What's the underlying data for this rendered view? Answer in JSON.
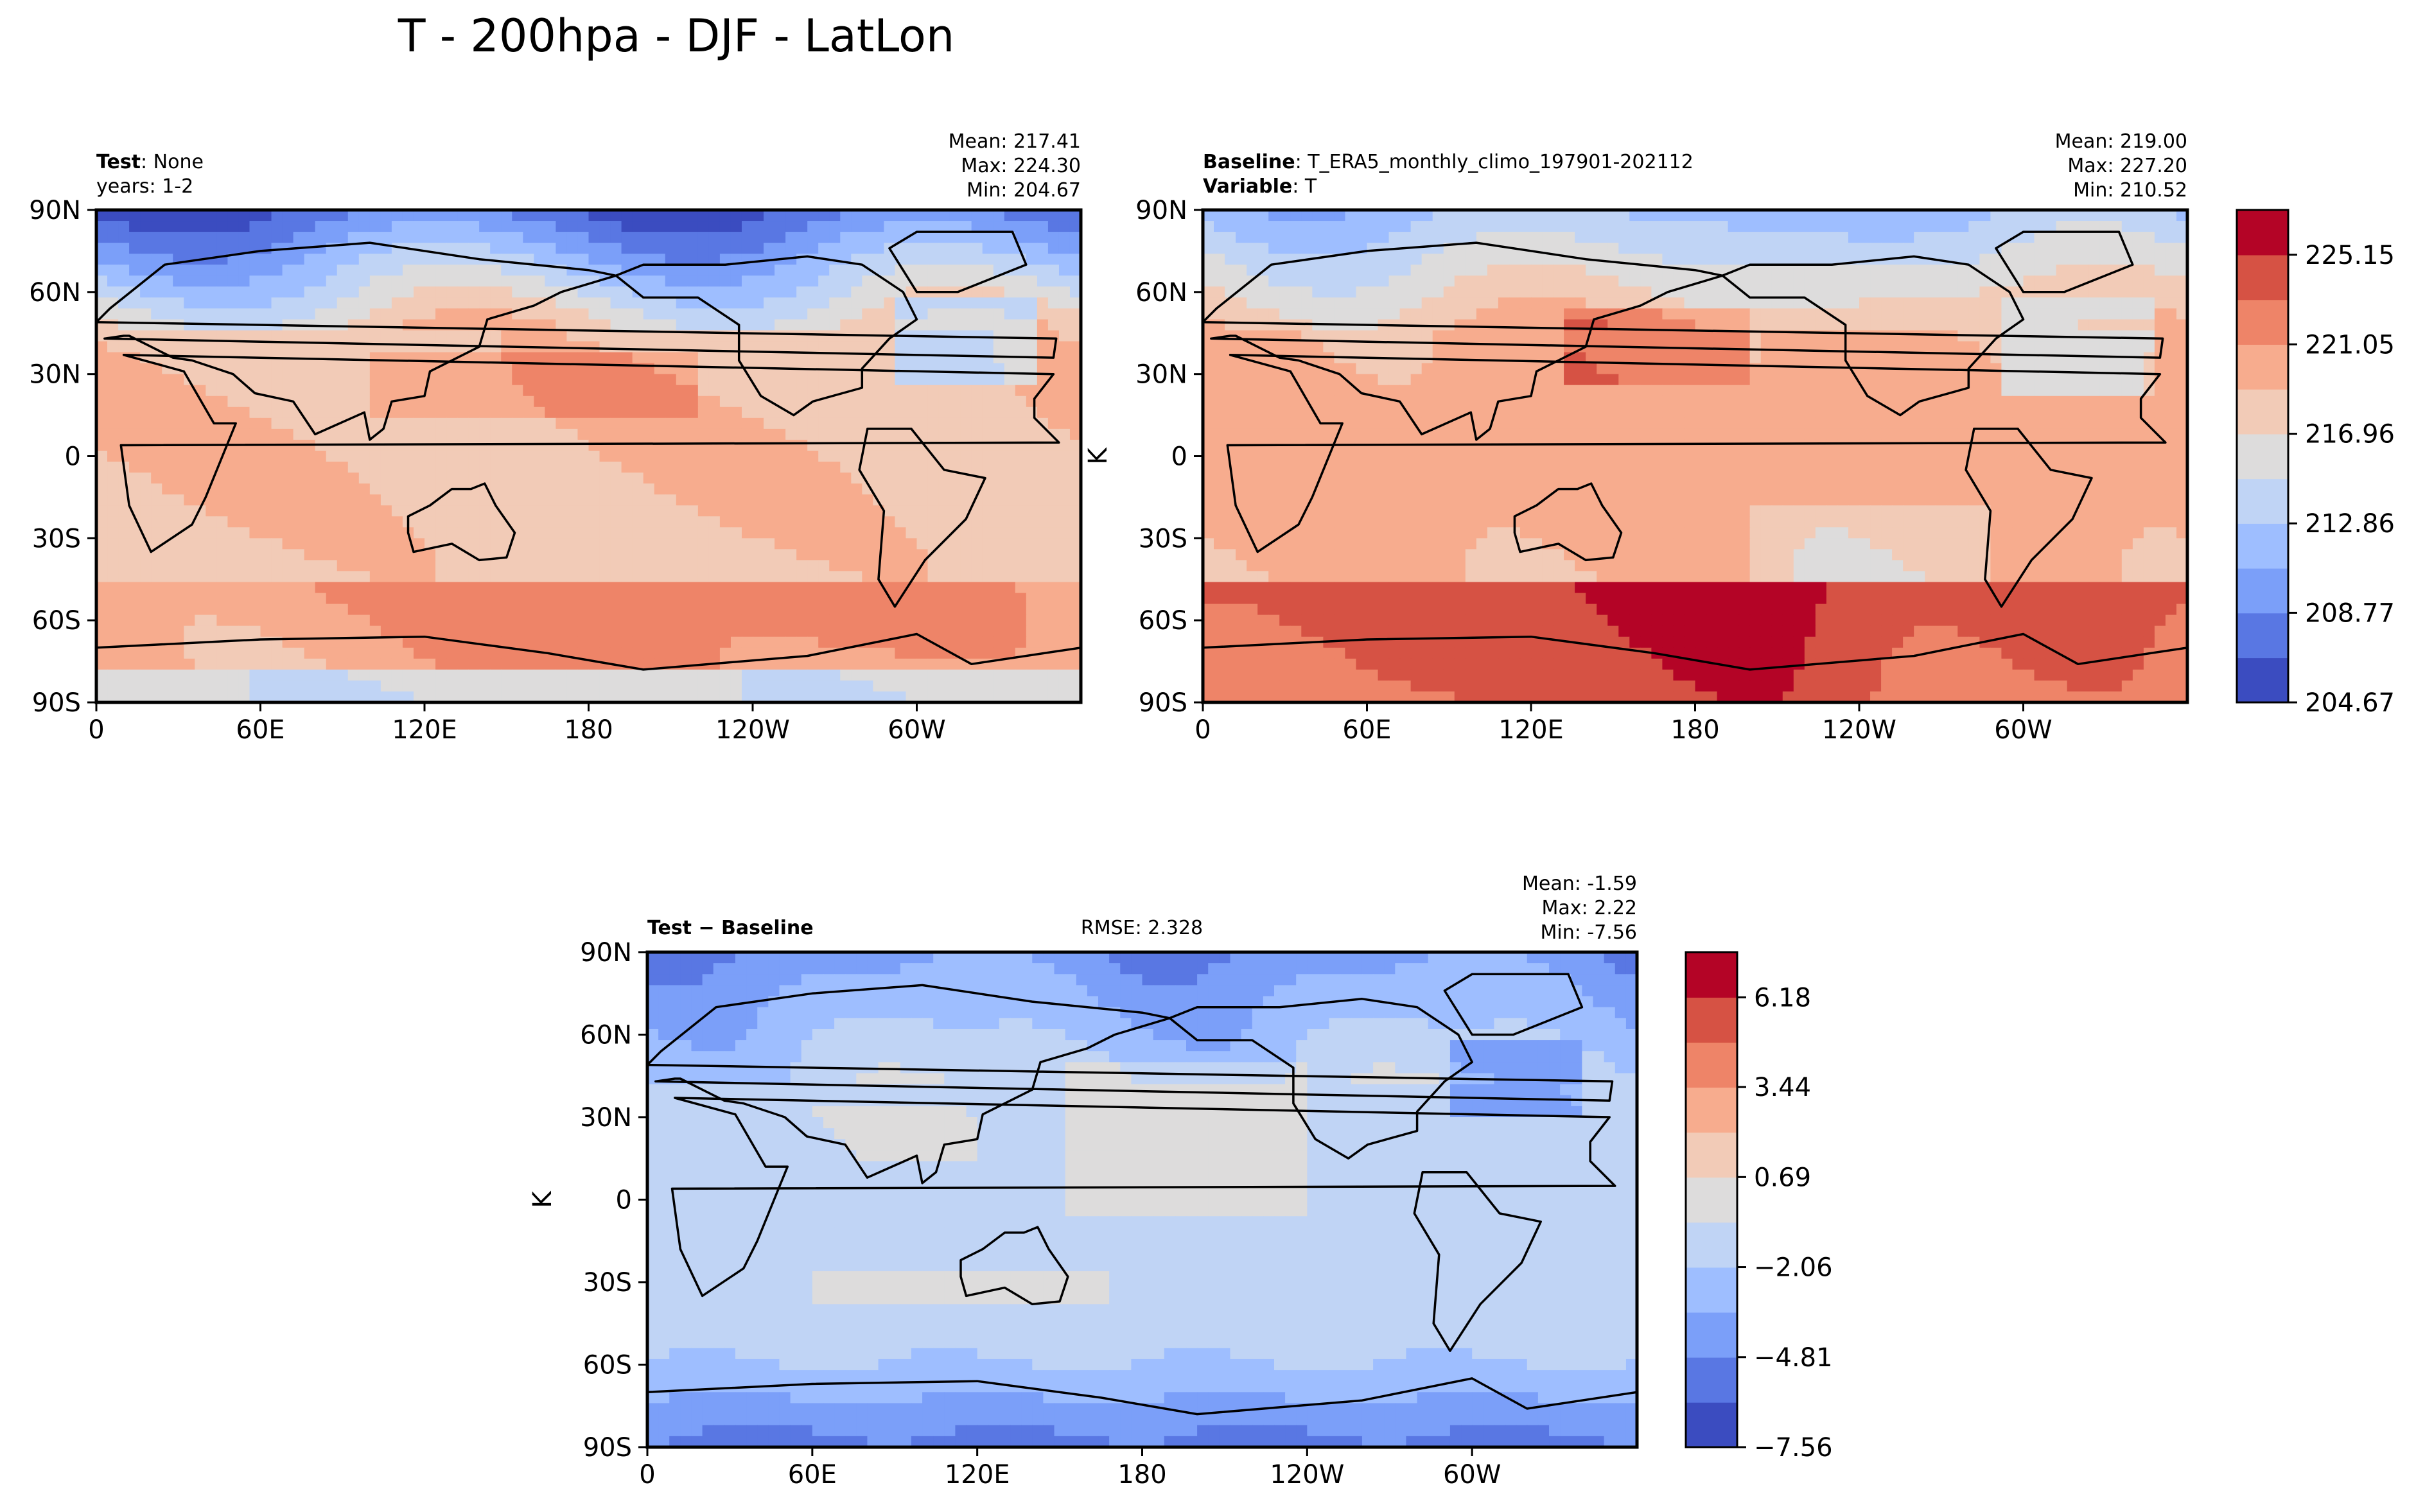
{
  "figure": {
    "title": "T - 200hpa - DJF - LatLon"
  },
  "chart_data": [
    {
      "type": "heatmap",
      "panel": "test",
      "title_left_bold": "Test",
      "title_left_rest": ": None",
      "title_left_line2": "years: 1-2",
      "stats": {
        "mean": "Mean: 217.41",
        "max": "Max: 224.30",
        "min": "Min: 204.67"
      },
      "ylabel": "",
      "xticks": [
        "0",
        "60E",
        "120E",
        "180",
        "120W",
        "60W"
      ],
      "yticks": [
        "90N",
        "60N",
        "30N",
        "0",
        "30S",
        "60S",
        "90S"
      ],
      "xlim": [
        0,
        360
      ],
      "ylim": [
        -90,
        90
      ],
      "levels": [
        204.67,
        206.72,
        208.77,
        210.82,
        212.86,
        214.91,
        216.96,
        219.01,
        221.05,
        223.1,
        225.15,
        227.2
      ],
      "colors": [
        "#3b4cc0",
        "#5977e3",
        "#7b9ff9",
        "#9ebeff",
        "#c0d4f5",
        "#dddcdc",
        "#f2cbb7",
        "#f7ac8e",
        "#ee8468",
        "#d65244",
        "#b40426"
      ],
      "field_levels_by_lat": [
        5,
        5,
        6,
        6,
        6,
        7,
        7,
        6,
        6,
        8,
        7
      ],
      "field_lats": [
        -90,
        -60,
        -50,
        -30,
        -20,
        0,
        20,
        30,
        45,
        60,
        90
      ]
    },
    {
      "type": "heatmap",
      "panel": "baseline",
      "title_left_bold": "Baseline",
      "title_left_rest": ": T_ERA5_monthly_climo_197901-202112",
      "title_left_bold2": "Variable",
      "title_left_rest2": ": T",
      "stats": {
        "mean": "Mean: 219.00",
        "max": "Max: 227.20",
        "min": "Min: 210.52"
      },
      "ylabel": "K",
      "xticks": [
        "0",
        "60E",
        "120E",
        "180",
        "120W",
        "60W"
      ],
      "yticks": [
        "90N",
        "60N",
        "30N",
        "0",
        "30S",
        "60S",
        "90S"
      ],
      "xlim": [
        0,
        360
      ],
      "ylim": [
        -90,
        90
      ],
      "colorbar": {
        "tick_labels": [
          "225.15",
          "221.05",
          "216.96",
          "212.86",
          "208.77",
          "204.67"
        ],
        "tick_values": [
          225.15,
          221.05,
          216.96,
          212.86,
          208.77,
          204.67
        ],
        "vmin": 204.67,
        "vmax": 227.2
      }
    },
    {
      "type": "heatmap",
      "panel": "diff",
      "title_left_bold": "Test − Baseline",
      "title_center": "RMSE: 2.328",
      "stats": {
        "mean": "Mean: -1.59",
        "max": "Max:  2.22",
        "min": "Min: -7.56"
      },
      "ylabel": "K",
      "xticks": [
        "0",
        "60E",
        "120E",
        "180",
        "120W",
        "60W"
      ],
      "yticks": [
        "90N",
        "60N",
        "30N",
        "0",
        "30S",
        "60S",
        "90S"
      ],
      "xlim": [
        0,
        360
      ],
      "ylim": [
        -90,
        90
      ],
      "colorbar": {
        "tick_labels": [
          "6.18",
          "3.44",
          "0.69",
          "−2.06",
          "−4.81",
          "−7.56"
        ],
        "tick_values": [
          6.18,
          3.44,
          0.69,
          -2.06,
          -4.81,
          -7.56
        ],
        "vmin": -7.56,
        "vmax": 7.56
      }
    }
  ],
  "colormap": [
    "#3b4cc0",
    "#5977e3",
    "#7b9ff9",
    "#9ebeff",
    "#c0d4f5",
    "#dddcdc",
    "#f2cbb7",
    "#f7ac8e",
    "#ee8468",
    "#d65244",
    "#b40426"
  ]
}
